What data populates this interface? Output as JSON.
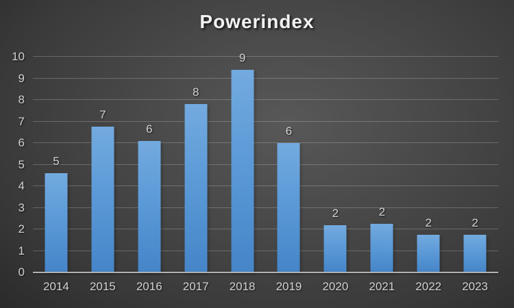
{
  "chart_data": {
    "type": "bar",
    "title": "Powerindex",
    "categories": [
      "2014",
      "2015",
      "2016",
      "2017",
      "2018",
      "2019",
      "2020",
      "2021",
      "2022",
      "2023"
    ],
    "values": [
      4.6,
      6.75,
      6.1,
      7.8,
      9.4,
      6.0,
      2.2,
      2.25,
      1.75,
      1.75
    ],
    "bar_labels": [
      "5",
      "7",
      "6",
      "8",
      "9",
      "6",
      "2",
      "2",
      "2",
      "2"
    ],
    "xlabel": "",
    "ylabel": "",
    "ylim": [
      0,
      10
    ],
    "yticks": [
      0,
      1,
      2,
      3,
      4,
      5,
      6,
      7,
      8,
      9,
      10
    ],
    "grid": true,
    "legend_position": "none",
    "colors": {
      "bar_top": "#73aadf",
      "bar_bottom": "#4585c8",
      "tick_label": "#d2d2d2",
      "title": "#f2f2f2",
      "gridline": "rgba(255,255,255,0.22)",
      "axis_line": "#b3b3b3",
      "background_center": "#585858",
      "background_edge": "#1b1b1b"
    }
  }
}
